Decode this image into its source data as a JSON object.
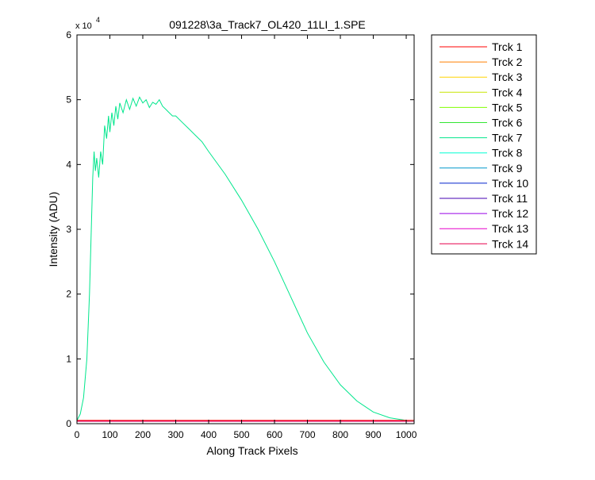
{
  "chart_data": {
    "type": "line",
    "title": "091228\\3a_Track7_OL420_11LI_1.SPE",
    "xlabel": "Along Track Pixels",
    "ylabel": "Intensity (ADU)",
    "y_exponent_label": "x 10",
    "y_exponent_power": "4",
    "xlim": [
      0,
      1024
    ],
    "ylim": [
      0,
      60000
    ],
    "x_ticks": [
      0,
      100,
      200,
      300,
      400,
      500,
      600,
      700,
      800,
      900,
      1000
    ],
    "y_ticks": [
      0,
      1,
      2,
      3,
      4,
      5,
      6
    ],
    "y_tick_scale": 10000,
    "grid": false,
    "legend_position": "outside-right",
    "series": [
      {
        "name": "Trck 1",
        "color": "#ff0000",
        "baseline": 500
      },
      {
        "name": "Trck 2",
        "color": "#ff7f00",
        "baseline": 480
      },
      {
        "name": "Trck 3",
        "color": "#ffd400",
        "baseline": 470
      },
      {
        "name": "Trck 4",
        "color": "#c8e600",
        "baseline": 460
      },
      {
        "name": "Trck 5",
        "color": "#80ff00",
        "baseline": 450
      },
      {
        "name": "Trck 6",
        "color": "#33e633",
        "baseline": 450
      },
      {
        "name": "Trck 7",
        "color": "#00e68c",
        "x": [
          0,
          10,
          20,
          30,
          38,
          44,
          48,
          52,
          56,
          60,
          66,
          72,
          78,
          84,
          90,
          96,
          100,
          106,
          112,
          118,
          124,
          130,
          140,
          150,
          160,
          170,
          180,
          190,
          200,
          210,
          220,
          230,
          240,
          250,
          260,
          270,
          280,
          290,
          300,
          320,
          340,
          360,
          380,
          400,
          450,
          500,
          550,
          600,
          650,
          700,
          750,
          800,
          850,
          900,
          950,
          1000,
          1024
        ],
        "y": [
          500,
          1500,
          4000,
          10000,
          20000,
          31000,
          38000,
          42000,
          39000,
          41000,
          38000,
          42000,
          40000,
          46000,
          44000,
          47500,
          45000,
          48000,
          46000,
          49000,
          47000,
          49500,
          48000,
          50000,
          48500,
          50200,
          49000,
          50400,
          49500,
          50000,
          48800,
          49600,
          49300,
          50000,
          49000,
          48500,
          48000,
          47500,
          47500,
          46500,
          45500,
          44500,
          43500,
          42000,
          38500,
          34500,
          30000,
          25000,
          19500,
          14000,
          9500,
          6000,
          3500,
          1800,
          900,
          500,
          450
        ]
      },
      {
        "name": "Trck 8",
        "color": "#00ffd4",
        "baseline": 440
      },
      {
        "name": "Trck 9",
        "color": "#0099cc",
        "baseline": 430
      },
      {
        "name": "Trck 10",
        "color": "#0022cc",
        "baseline": 420
      },
      {
        "name": "Trck 11",
        "color": "#4400b3",
        "baseline": 410
      },
      {
        "name": "Trck 12",
        "color": "#9900e6",
        "baseline": 400
      },
      {
        "name": "Trck 13",
        "color": "#e600cc",
        "baseline": 390
      },
      {
        "name": "Trck 14",
        "color": "#e6004c",
        "baseline": 380
      }
    ]
  }
}
